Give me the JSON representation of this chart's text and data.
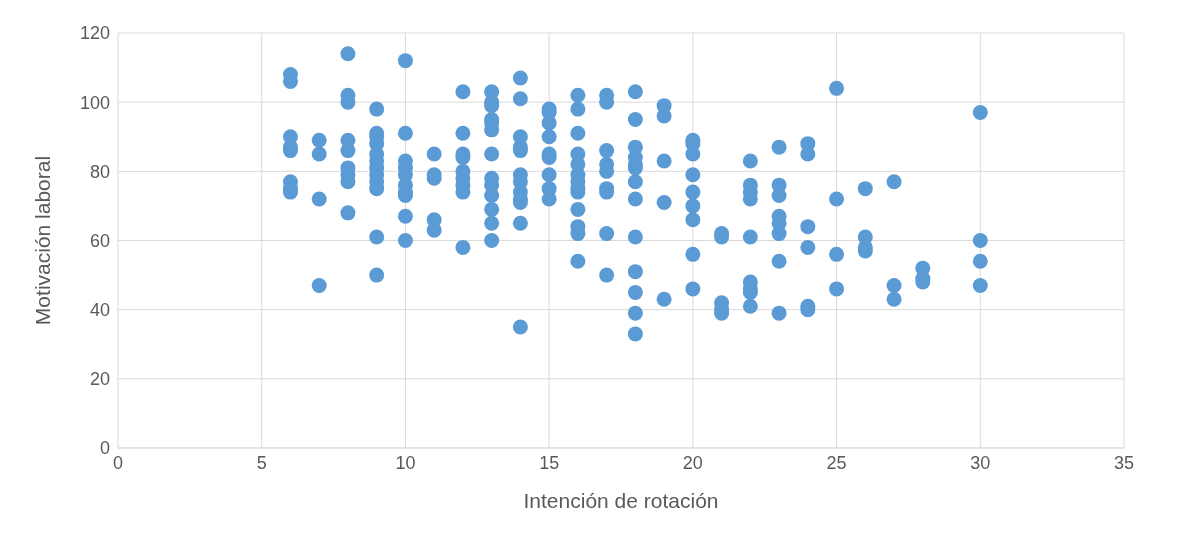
{
  "chart_data": {
    "type": "scatter",
    "xlabel": "Intención de rotación",
    "ylabel": "Motivación laboral",
    "xlim": [
      0,
      35
    ],
    "xticks": [
      0,
      5,
      10,
      15,
      20,
      25,
      30,
      35
    ],
    "ylim": [
      0,
      120
    ],
    "yticks": [
      0,
      20,
      40,
      60,
      80,
      100,
      120
    ],
    "grid": true,
    "legend": false,
    "marker": "circle",
    "series": [
      {
        "color": "#5b9bd5",
        "x": [
          6,
          6,
          6,
          6,
          6,
          6,
          6,
          6,
          7,
          7,
          7,
          7,
          8,
          8,
          8,
          8,
          8,
          8,
          8,
          8,
          8,
          9,
          9,
          9,
          9,
          9,
          9,
          9,
          9,
          9,
          9,
          9,
          9,
          10,
          10,
          10,
          10,
          10,
          10,
          10,
          10,
          10,
          10,
          11,
          11,
          11,
          11,
          11,
          12,
          12,
          12,
          12,
          12,
          12,
          12,
          12,
          12,
          13,
          13,
          13,
          13,
          13,
          13,
          13,
          13,
          13,
          13,
          13,
          13,
          13,
          14,
          14,
          14,
          14,
          14,
          14,
          14,
          14,
          14,
          14,
          14,
          14,
          15,
          15,
          15,
          15,
          15,
          15,
          15,
          15,
          15,
          16,
          16,
          16,
          16,
          16,
          16,
          16,
          16,
          16,
          16,
          16,
          16,
          16,
          17,
          17,
          17,
          17,
          17,
          17,
          17,
          17,
          17,
          18,
          18,
          18,
          18,
          18,
          18,
          18,
          18,
          18,
          18,
          18,
          18,
          18,
          19,
          19,
          19,
          19,
          19,
          20,
          20,
          20,
          20,
          20,
          20,
          20,
          20,
          20,
          21,
          21,
          21,
          21,
          21,
          22,
          22,
          22,
          22,
          22,
          22,
          22,
          22,
          22,
          23,
          23,
          23,
          23,
          23,
          23,
          23,
          23,
          24,
          24,
          24,
          24,
          24,
          24,
          25,
          25,
          25,
          25,
          26,
          26,
          26,
          26,
          27,
          27,
          27,
          28,
          28,
          28,
          30,
          30,
          30,
          30
        ],
        "values": [
          108,
          106,
          90,
          87,
          86,
          77,
          75,
          74,
          89,
          85,
          72,
          47,
          114,
          102,
          100,
          89,
          86,
          81,
          79,
          77,
          68,
          98,
          91,
          90,
          88,
          85,
          83,
          81,
          79,
          77,
          75,
          61,
          50,
          112,
          91,
          83,
          81,
          79,
          76,
          74,
          73,
          67,
          60,
          85,
          79,
          78,
          66,
          63,
          103,
          91,
          85,
          84,
          80,
          78,
          76,
          74,
          58,
          103,
          100,
          99,
          95,
          94,
          92,
          85,
          78,
          76,
          73,
          69,
          65,
          60,
          107,
          101,
          90,
          87,
          86,
          79,
          77,
          74,
          72,
          71,
          65,
          35,
          98,
          97,
          94,
          90,
          85,
          84,
          79,
          75,
          72,
          102,
          98,
          91,
          85,
          82,
          79,
          77,
          75,
          74,
          69,
          64,
          62,
          54,
          102,
          100,
          86,
          82,
          80,
          75,
          74,
          62,
          50,
          103,
          95,
          87,
          84,
          82,
          81,
          77,
          72,
          61,
          51,
          45,
          39,
          33,
          99,
          96,
          83,
          71,
          43,
          89,
          88,
          85,
          79,
          74,
          70,
          66,
          56,
          46,
          62,
          61,
          42,
          40,
          39,
          83,
          76,
          74,
          72,
          61,
          48,
          46,
          45,
          41,
          87,
          76,
          73,
          67,
          65,
          62,
          54,
          39,
          88,
          85,
          64,
          58,
          41,
          40,
          104,
          72,
          56,
          46,
          75,
          61,
          58,
          57,
          77,
          47,
          43,
          52,
          49,
          48,
          97,
          60,
          54,
          47
        ]
      }
    ]
  }
}
